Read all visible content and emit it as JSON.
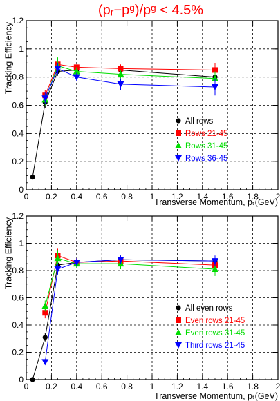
{
  "figure_title": "(pᵣ−pᵍ)/pᵍ < 4.5%",
  "chart_data": [
    {
      "type": "line",
      "panel": "top",
      "xlabel": "Transverse Momentum, pₜ(GeV)",
      "ylabel": "Tracking Efficiency",
      "xlim": [
        0,
        2
      ],
      "ylim": [
        0,
        1.2
      ],
      "xticks": [
        "0",
        "0.2",
        "0.4",
        "0.6",
        "0.8",
        "1",
        "1.2",
        "1.4",
        "1.6",
        "1.8",
        "2"
      ],
      "yticks": [
        "0",
        "0.2",
        "0.4",
        "0.6",
        "0.8",
        "1",
        "1.2"
      ],
      "grid": true,
      "legend_position": "right-middle",
      "series": [
        {
          "name": "All rows",
          "color": "#000000",
          "marker": "circle",
          "x": [
            0.05,
            0.15,
            0.25,
            0.4,
            0.75,
            1.5
          ],
          "y": [
            0.09,
            0.62,
            0.84,
            0.85,
            0.85,
            0.8
          ],
          "err": [
            0.01,
            0.04,
            0.03,
            0.02,
            0.03,
            0.05
          ]
        },
        {
          "name": "Rows 21-45",
          "color": "#ff0000",
          "marker": "square",
          "x": [
            0.15,
            0.25,
            0.4,
            0.75,
            1.5
          ],
          "y": [
            0.67,
            0.89,
            0.87,
            0.86,
            0.85
          ],
          "err": [
            0.04,
            0.03,
            0.02,
            0.03,
            0.05
          ]
        },
        {
          "name": "Rows 31-45",
          "color": "#00dd00",
          "marker": "triangle-up",
          "x": [
            0.15,
            0.25,
            0.4,
            0.75,
            1.5
          ],
          "y": [
            0.64,
            0.88,
            0.84,
            0.82,
            0.79
          ],
          "err": [
            0.04,
            0.06,
            0.03,
            0.03,
            0.05
          ]
        },
        {
          "name": "Rows 36-45",
          "color": "#0000ff",
          "marker": "triangle-down",
          "x": [
            0.15,
            0.25,
            0.4,
            0.75,
            1.5
          ],
          "y": [
            0.65,
            0.86,
            0.8,
            0.75,
            0.73
          ],
          "err": [
            0.04,
            0.04,
            0.03,
            0.04,
            0.06
          ]
        }
      ]
    },
    {
      "type": "line",
      "panel": "bottom",
      "xlabel": "Transverse Momentum, pₜ(GeV)",
      "ylabel": "Tracking Efficiency",
      "xlim": [
        0,
        2
      ],
      "ylim": [
        0,
        1.2
      ],
      "xticks": [
        "0",
        "0.2",
        "0.4",
        "0.6",
        "0.8",
        "1",
        "1.2",
        "1.4",
        "1.6",
        "1.8",
        "2"
      ],
      "yticks": [
        "0",
        "0.2",
        "0.4",
        "0.6",
        "0.8",
        "1",
        "1.2"
      ],
      "grid": true,
      "legend_position": "right-lower",
      "series": [
        {
          "name": "All even rows",
          "color": "#000000",
          "marker": "circle",
          "x": [
            0.05,
            0.15,
            0.25,
            0.4,
            0.75,
            1.5
          ],
          "y": [
            0.0,
            0.31,
            0.84,
            0.86,
            0.88,
            0.87
          ],
          "err": [
            0.0,
            0.03,
            0.03,
            0.02,
            0.03,
            0.03
          ]
        },
        {
          "name": "Even rows 21-45",
          "color": "#ff0000",
          "marker": "square",
          "x": [
            0.15,
            0.25,
            0.4,
            0.75,
            1.5
          ],
          "y": [
            0.49,
            0.91,
            0.86,
            0.87,
            0.84
          ],
          "err": [
            0.04,
            0.05,
            0.03,
            0.03,
            0.04
          ]
        },
        {
          "name": "Even rows 31-45",
          "color": "#00dd00",
          "marker": "triangle-up",
          "x": [
            0.15,
            0.25,
            0.4,
            0.75,
            1.5
          ],
          "y": [
            0.54,
            0.89,
            0.85,
            0.85,
            0.81
          ],
          "err": [
            0.04,
            0.06,
            0.03,
            0.04,
            0.05
          ]
        },
        {
          "name": "Third rows 21-45",
          "color": "#0000ff",
          "marker": "triangle-down",
          "x": [
            0.15,
            0.25,
            0.4,
            0.75,
            1.5
          ],
          "y": [
            0.13,
            0.81,
            0.86,
            0.88,
            0.87
          ],
          "err": [
            0.02,
            0.04,
            0.03,
            0.03,
            0.04
          ]
        }
      ]
    }
  ]
}
